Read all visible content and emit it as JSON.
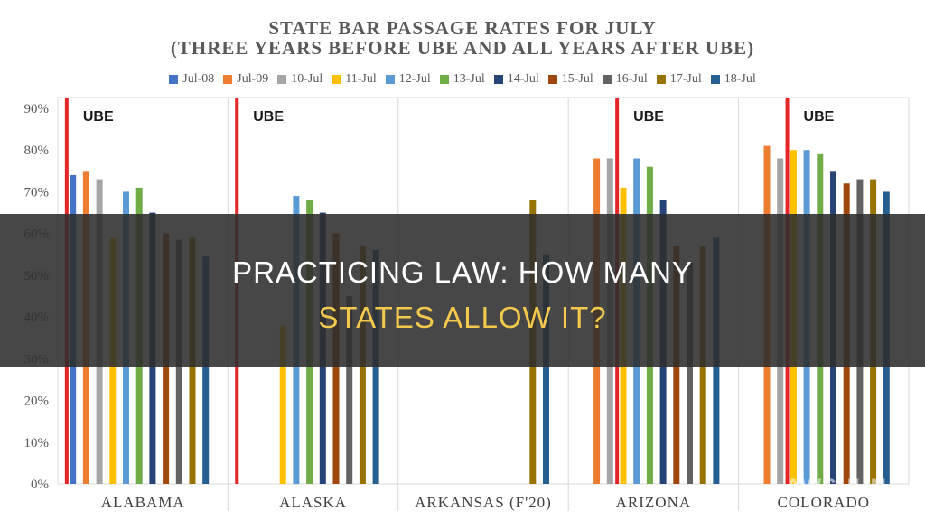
{
  "overlay": {
    "line1": "PRACTICING LAW: HOW MANY",
    "line2": "STATES ALLOW IT?",
    "watermark": "LAWSHUN"
  },
  "chart_data": {
    "type": "bar",
    "title": "STATE BAR PASSAGE RATES FOR JULY",
    "subtitle": "(THREE YEARS BEFORE UBE AND ALL YEARS AFTER UBE)",
    "categories": [
      "ALABAMA",
      "ALASKA",
      "ARKANSAS (F'20)",
      "ARIZONA",
      "COLORADO"
    ],
    "ylim": [
      0,
      90
    ],
    "y_ticks": [
      0,
      10,
      20,
      30,
      40,
      50,
      60,
      70,
      80,
      90
    ],
    "y_tick_format": "percent",
    "grid": "vertical category dividers",
    "legend_position": "top",
    "ube_marker": {
      "label": "UBE",
      "color": "#e32526"
    },
    "ube_after_series": {
      "ALABAMA": "Jul-08",
      "ALASKA": "Jul-08",
      "ARIZONA": "11-Jul",
      "COLORADO": "11-Jul"
    },
    "series": [
      {
        "name": "Jul-08",
        "color": "#4472c4",
        "values": [
          74,
          null,
          null,
          null,
          null
        ]
      },
      {
        "name": "Jul-09",
        "color": "#ed7d31",
        "values": [
          75,
          null,
          null,
          78,
          81
        ]
      },
      {
        "name": "10-Jul",
        "color": "#a5a5a5",
        "values": [
          73,
          null,
          null,
          78,
          78
        ]
      },
      {
        "name": "11-Jul",
        "color": "#ffc000",
        "values": [
          59,
          38,
          null,
          71,
          80
        ]
      },
      {
        "name": "12-Jul",
        "color": "#5b9bd5",
        "values": [
          70,
          69,
          null,
          78,
          80
        ]
      },
      {
        "name": "13-Jul",
        "color": "#70ad47",
        "values": [
          71,
          68,
          null,
          76,
          79
        ]
      },
      {
        "name": "14-Jul",
        "color": "#264478",
        "values": [
          65,
          65,
          null,
          68,
          75
        ]
      },
      {
        "name": "15-Jul",
        "color": "#9e480e",
        "values": [
          60,
          60,
          null,
          57,
          72
        ]
      },
      {
        "name": "16-Jul",
        "color": "#636363",
        "values": [
          58.5,
          45,
          null,
          53,
          73
        ]
      },
      {
        "name": "17-Jul",
        "color": "#997300",
        "values": [
          59,
          57,
          68,
          57,
          73
        ]
      },
      {
        "name": "18-Jul",
        "color": "#255e91",
        "values": [
          54.5,
          56,
          55,
          59,
          70
        ]
      }
    ]
  }
}
